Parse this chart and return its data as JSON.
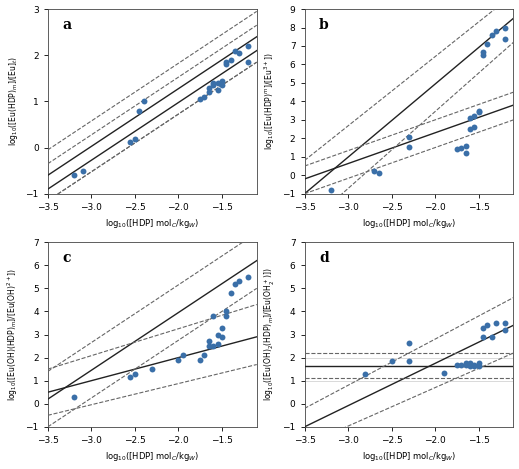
{
  "fig_width": 5.19,
  "fig_height": 4.69,
  "dpi": 100,
  "background_color": "#ffffff",
  "dot_color": "#3a6fa8",
  "dot_size": 18,
  "line_color": "#222222",
  "ci_color": "#666666",
  "panels": [
    {
      "label": "a",
      "xlabel": "log$_{10}$([HDP] mol$_C$/kg$_W$)",
      "ylabel": "log$_{10}$([Eu(HDP)$_m$]/[Eu]$_t$)",
      "xlim": [
        -3.5,
        -1.1
      ],
      "ylim": [
        -1,
        3
      ],
      "yticks": [
        -1,
        0,
        1,
        2,
        3
      ],
      "xticks": [
        -3.5,
        -3.0,
        -2.5,
        -2.0,
        -1.5
      ],
      "data_x": [
        -3.2,
        -3.1,
        -2.55,
        -2.5,
        -2.45,
        -2.4,
        -1.75,
        -1.7,
        -1.65,
        -1.65,
        -1.6,
        -1.6,
        -1.55,
        -1.55,
        -1.5,
        -1.5,
        -1.45,
        -1.45,
        -1.4,
        -1.35,
        -1.3,
        -1.2,
        -1.2
      ],
      "data_y": [
        -0.6,
        -0.5,
        0.12,
        0.18,
        0.8,
        1.0,
        1.05,
        1.1,
        1.2,
        1.3,
        1.35,
        1.4,
        1.25,
        1.4,
        1.35,
        1.45,
        1.8,
        1.85,
        1.9,
        2.1,
        2.05,
        2.2,
        1.85
      ],
      "lines": [
        {
          "x": [
            -3.5,
            -1.1
          ],
          "y": [
            -0.9,
            2.1
          ],
          "style": "solid",
          "lw": 1.0
        },
        {
          "x": [
            -3.5,
            -1.1
          ],
          "y": [
            -0.6,
            2.4
          ],
          "style": "solid",
          "lw": 1.0
        },
        {
          "x": [
            -3.5,
            -1.1
          ],
          "y": [
            -0.35,
            2.65
          ],
          "style": "dashed",
          "lw": 0.8
        },
        {
          "x": [
            -3.5,
            -1.1
          ],
          "y": [
            -1.15,
            1.85
          ],
          "style": "dashed",
          "lw": 0.8
        },
        {
          "x": [
            -3.5,
            -1.1
          ],
          "y": [
            -0.05,
            2.95
          ],
          "style": "dashed",
          "lw": 0.8
        },
        {
          "x": [
            -3.5,
            -1.1
          ],
          "y": [
            -1.15,
            1.85
          ],
          "style": "dashed",
          "lw": 0.8
        }
      ]
    },
    {
      "label": "b",
      "xlabel": "log$_{10}$([HDP] mol$_C$/kg$_W$)",
      "ylabel": "log$_{10}$([Eu(HDP)$^m$]/[Eu$^{3+}$])",
      "xlim": [
        -3.5,
        -1.1
      ],
      "ylim": [
        -1,
        9
      ],
      "yticks": [
        -1,
        0,
        1,
        2,
        3,
        4,
        5,
        6,
        7,
        8,
        9
      ],
      "xticks": [
        -3.5,
        -3.0,
        -2.5,
        -2.0,
        -1.5
      ],
      "data_x": [
        -3.2,
        -2.7,
        -2.65,
        -2.3,
        -2.3,
        -1.75,
        -1.7,
        -1.65,
        -1.65,
        -1.6,
        -1.6,
        -1.55,
        -1.55,
        -1.5,
        -1.5,
        -1.45,
        -1.45,
        -1.4,
        -1.35,
        -1.3,
        -1.2,
        -1.2
      ],
      "data_y": [
        -0.8,
        0.25,
        0.15,
        1.55,
        2.05,
        1.4,
        1.5,
        1.2,
        1.6,
        2.5,
        3.1,
        2.6,
        3.2,
        3.4,
        3.5,
        6.5,
        6.7,
        7.1,
        7.6,
        7.8,
        8.0,
        7.4
      ],
      "lines": [
        {
          "x": [
            -3.5,
            -1.1
          ],
          "y": [
            -1.0,
            8.5
          ],
          "style": "solid",
          "lw": 1.0
        },
        {
          "x": [
            -3.5,
            -1.1
          ],
          "y": [
            -0.2,
            3.8
          ],
          "style": "solid",
          "lw": 1.0
        },
        {
          "x": [
            -3.5,
            -1.1
          ],
          "y": [
            0.8,
            9.8
          ],
          "style": "dashed",
          "lw": 0.8
        },
        {
          "x": [
            -3.5,
            -1.1
          ],
          "y": [
            -2.8,
            7.2
          ],
          "style": "dashed",
          "lw": 0.8
        },
        {
          "x": [
            -3.5,
            -1.1
          ],
          "y": [
            0.5,
            4.5
          ],
          "style": "dashed",
          "lw": 0.8
        },
        {
          "x": [
            -3.5,
            -1.1
          ],
          "y": [
            -1.0,
            3.0
          ],
          "style": "dashed",
          "lw": 0.8
        }
      ]
    },
    {
      "label": "c",
      "xlabel": "log$_{10}$([HDP] mol$_C$/kg$_{W}$)",
      "ylabel": "log$_{10}$([Eu(OH)(HDP)$_m$]/[Eu(OH)$^{2+}$])",
      "xlim": [
        -3.5,
        -1.1
      ],
      "ylim": [
        -1,
        7
      ],
      "yticks": [
        -1,
        0,
        1,
        2,
        3,
        4,
        5,
        6,
        7
      ],
      "xticks": [
        -3.5,
        -3.0,
        -2.5,
        -2.0,
        -1.5
      ],
      "data_x": [
        -3.2,
        -2.55,
        -2.5,
        -2.3,
        -2.0,
        -1.95,
        -1.75,
        -1.7,
        -1.65,
        -1.65,
        -1.6,
        -1.6,
        -1.55,
        -1.55,
        -1.5,
        -1.5,
        -1.45,
        -1.45,
        -1.4,
        -1.35,
        -1.3,
        -1.2
      ],
      "data_y": [
        0.3,
        1.15,
        1.3,
        1.5,
        1.9,
        2.1,
        1.9,
        2.1,
        2.5,
        2.7,
        3.8,
        2.5,
        2.6,
        3.0,
        3.3,
        2.9,
        3.8,
        4.0,
        4.8,
        5.2,
        5.3,
        5.5
      ],
      "lines": [
        {
          "x": [
            -3.5,
            -1.1
          ],
          "y": [
            0.2,
            6.2
          ],
          "style": "solid",
          "lw": 1.0
        },
        {
          "x": [
            -3.5,
            -1.1
          ],
          "y": [
            0.5,
            2.9
          ],
          "style": "solid",
          "lw": 1.0
        },
        {
          "x": [
            -3.5,
            -1.1
          ],
          "y": [
            1.4,
            7.4
          ],
          "style": "dashed",
          "lw": 0.8
        },
        {
          "x": [
            -3.5,
            -1.1
          ],
          "y": [
            -1.0,
            5.0
          ],
          "style": "dashed",
          "lw": 0.8
        },
        {
          "x": [
            -3.5,
            -1.1
          ],
          "y": [
            1.5,
            4.3
          ],
          "style": "dashed",
          "lw": 0.8
        },
        {
          "x": [
            -3.5,
            -1.1
          ],
          "y": [
            -0.5,
            1.7
          ],
          "style": "dashed",
          "lw": 0.8
        }
      ]
    },
    {
      "label": "d",
      "xlabel": "log$_{10}$([HDP] mol$_C$/kg$_{W}$)",
      "ylabel": "log$_{10}$([Eu(OH)$_2$(HDP)$_m$]/[Eu(OH$_2^+$)])",
      "xlim": [
        -3.5,
        -1.1
      ],
      "ylim": [
        -1,
        7
      ],
      "yticks": [
        -1,
        0,
        1,
        2,
        3,
        4,
        5,
        6,
        7
      ],
      "xticks": [
        -3.5,
        -3.0,
        -2.5,
        -2.0,
        -1.5
      ],
      "data_x": [
        -2.8,
        -2.5,
        -2.3,
        -2.3,
        -1.9,
        -1.75,
        -1.7,
        -1.65,
        -1.65,
        -1.6,
        -1.6,
        -1.55,
        -1.55,
        -1.5,
        -1.5,
        -1.45,
        -1.45,
        -1.4,
        -1.35,
        -1.3,
        -1.2,
        -1.2
      ],
      "data_y": [
        1.3,
        1.85,
        2.65,
        1.85,
        1.35,
        1.7,
        1.7,
        1.7,
        1.75,
        1.65,
        1.75,
        1.65,
        1.7,
        1.65,
        1.75,
        2.9,
        3.3,
        3.4,
        2.9,
        3.5,
        3.5,
        3.2
      ],
      "lines": [
        {
          "x": [
            -3.5,
            -1.1
          ],
          "y": [
            1.65,
            1.65
          ],
          "style": "solid",
          "lw": 1.0
        },
        {
          "x": [
            -3.5,
            -1.1
          ],
          "y": [
            -1.0,
            3.4
          ],
          "style": "solid",
          "lw": 1.0
        },
        {
          "x": [
            -3.5,
            -1.1
          ],
          "y": [
            2.2,
            2.2
          ],
          "style": "dashed",
          "lw": 0.8
        },
        {
          "x": [
            -3.5,
            -1.1
          ],
          "y": [
            1.1,
            1.1
          ],
          "style": "dashed",
          "lw": 0.8
        },
        {
          "x": [
            -3.5,
            -1.1
          ],
          "y": [
            -0.2,
            4.6
          ],
          "style": "dashed",
          "lw": 0.8
        },
        {
          "x": [
            -3.5,
            -1.1
          ],
          "y": [
            -1.8,
            2.2
          ],
          "style": "dashed",
          "lw": 0.8
        }
      ],
      "hlines": [
        1.0,
        2.0
      ]
    }
  ]
}
